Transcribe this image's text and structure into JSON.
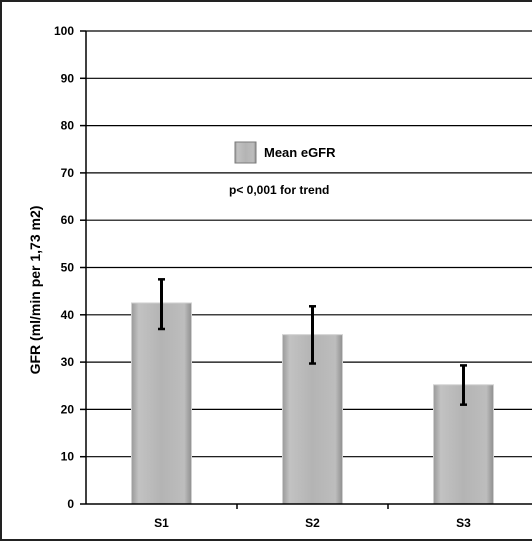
{
  "chart_data": {
    "type": "bar",
    "categories": [
      "S1",
      "S2",
      "S3"
    ],
    "series": [
      {
        "name": "Mean eGFR",
        "values": [
          42.5,
          35.8,
          25.2
        ],
        "error_low": [
          37,
          29.7,
          21
        ],
        "error_high": [
          47.5,
          41.8,
          29.3
        ]
      }
    ],
    "ylabel": "GFR  (ml/min per 1,73 m2)",
    "xlabel": "",
    "ylim": [
      0,
      100
    ],
    "yticks": [
      0,
      10,
      20,
      30,
      40,
      50,
      60,
      70,
      80,
      90,
      100
    ],
    "grid": true,
    "legend_position": "top-center",
    "annotation": "p< 0,001 for trend",
    "colors": {
      "bar": "#b3b3b3",
      "bar_edge": "#d0d0d0",
      "bar_dark": "#8c8c8c",
      "grid": "#000000"
    }
  }
}
